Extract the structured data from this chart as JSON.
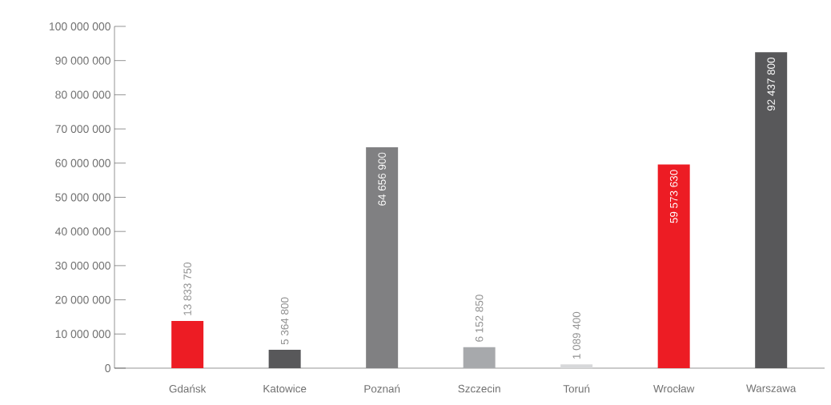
{
  "chart_data": {
    "type": "bar",
    "categories": [
      "Gdańsk",
      "Katowice",
      "Poznań",
      "Szczecin",
      "Toruń",
      "Wrocław",
      "Warszawa"
    ],
    "values": [
      13833750,
      5364800,
      64656900,
      6152850,
      1089400,
      59573630,
      92437800
    ],
    "colors": [
      "#ed1c24",
      "#58585a",
      "#808082",
      "#a7a9ac",
      "#d7d8da",
      "#ed1c24",
      "#58585a"
    ],
    "value_labels": [
      "13 833 750",
      "5 364 800",
      "64 656 900",
      "6 152 850",
      "1 089 400",
      "59 573 630",
      "92 437 800"
    ],
    "ylim": [
      0,
      100000000
    ],
    "yticks": [
      {
        "value": 0,
        "label": "0"
      },
      {
        "value": 10000000,
        "label": "10 000 000"
      },
      {
        "value": 20000000,
        "label": "20 000 000"
      },
      {
        "value": 30000000,
        "label": "30 000 000"
      },
      {
        "value": 40000000,
        "label": "40 000 000"
      },
      {
        "value": 50000000,
        "label": "50 000 000"
      },
      {
        "value": 60000000,
        "label": "60 000 000"
      },
      {
        "value": 70000000,
        "label": "70 000 000"
      },
      {
        "value": 80000000,
        "label": "80 000 000"
      },
      {
        "value": 90000000,
        "label": "90 000 000"
      },
      {
        "value": 100000000,
        "label": "100 000 000"
      }
    ],
    "grid": false
  }
}
